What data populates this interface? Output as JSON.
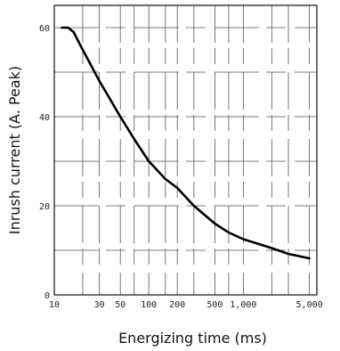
{
  "chart_data": {
    "type": "line",
    "xlabel": "Energizing time (ms)",
    "ylabel": "Inrush current (A. Peak)",
    "xscale": "log",
    "xlim": [
      10,
      6000
    ],
    "ylim": [
      0,
      65
    ],
    "grid": true,
    "x_ticks": [
      {
        "value": 10,
        "label": "10"
      },
      {
        "value": 30,
        "label": "30"
      },
      {
        "value": 50,
        "label": "50"
      },
      {
        "value": 100,
        "label": "100"
      },
      {
        "value": 200,
        "label": "200"
      },
      {
        "value": 500,
        "label": "500"
      },
      {
        "value": 1000,
        "label": "1,000"
      },
      {
        "value": 5000,
        "label": "5,000"
      }
    ],
    "y_ticks": [
      {
        "value": 0,
        "label": "0"
      },
      {
        "value": 20,
        "label": "20"
      },
      {
        "value": 40,
        "label": "40"
      },
      {
        "value": 60,
        "label": "60"
      }
    ],
    "series": [
      {
        "color": "#000000",
        "points": [
          [
            12,
            60
          ],
          [
            14,
            60
          ],
          [
            16,
            59
          ],
          [
            20,
            55
          ],
          [
            30,
            48
          ],
          [
            50,
            40
          ],
          [
            70,
            35
          ],
          [
            100,
            30
          ],
          [
            150,
            26
          ],
          [
            200,
            24
          ],
          [
            300,
            20
          ],
          [
            500,
            16
          ],
          [
            700,
            14
          ],
          [
            1000,
            12.5
          ],
          [
            2000,
            10.5
          ],
          [
            3000,
            9.2
          ],
          [
            5000,
            8.2
          ]
        ]
      }
    ]
  }
}
